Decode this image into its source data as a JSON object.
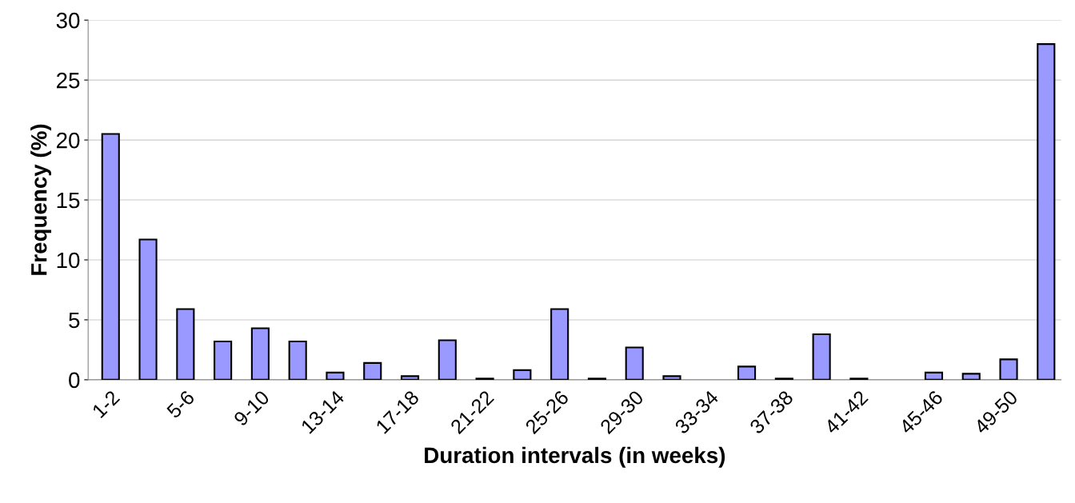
{
  "chart_data": {
    "type": "bar",
    "xlabel": "Duration intervals (in weeks)",
    "ylabel": "Frequency (%)",
    "categories": [
      "1-2",
      null,
      "5-6",
      null,
      "9-10",
      null,
      "13-14",
      null,
      "17-18",
      null,
      "21-22",
      null,
      "25-26",
      null,
      "29-30",
      null,
      "33-34",
      null,
      "37-38",
      null,
      "41-42",
      null,
      "45-46",
      null,
      "49-50",
      null
    ],
    "values": [
      20.5,
      11.7,
      5.9,
      3.2,
      4.3,
      3.2,
      0.6,
      1.4,
      0.3,
      3.3,
      0.1,
      0.8,
      5.9,
      0.1,
      2.7,
      0.3,
      0,
      1.1,
      0.1,
      3.8,
      0.1,
      0,
      0.6,
      0.5,
      1.7,
      28
    ],
    "color": "#9999ff",
    "ylim": [
      0,
      30
    ],
    "yticks": [
      0,
      5,
      10,
      15,
      20,
      25,
      30
    ],
    "grid": "y"
  }
}
